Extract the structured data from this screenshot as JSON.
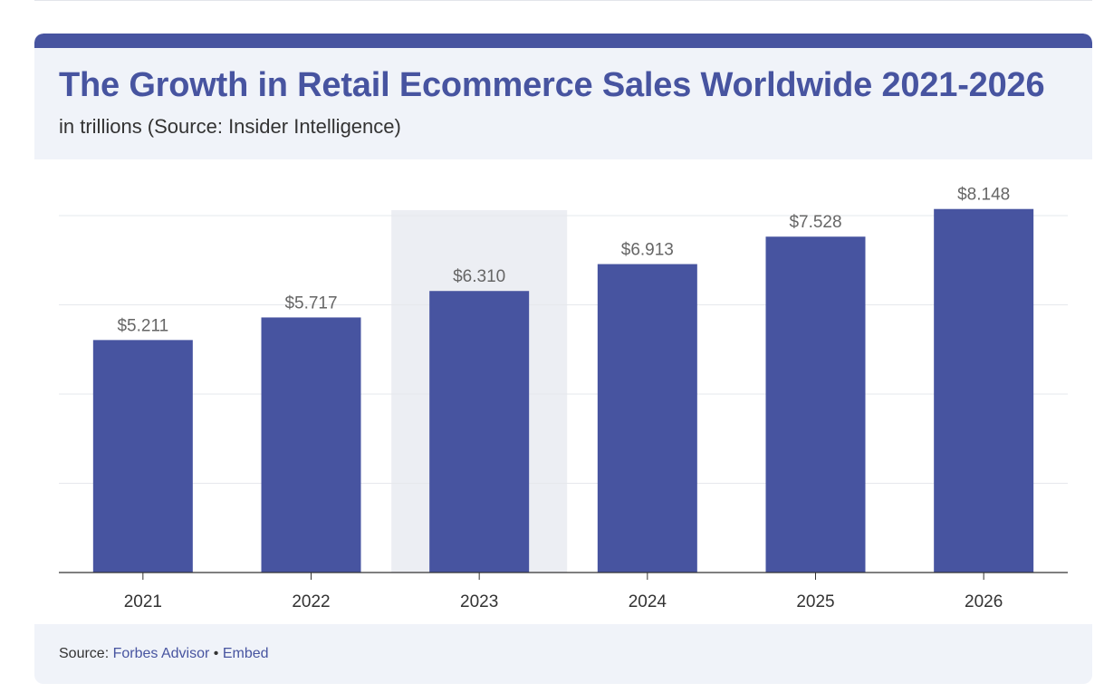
{
  "header": {
    "title": "The Growth in Retail Ecommerce Sales Worldwide 2021-2026",
    "subtitle": "in trillions (Source: Insider Intelligence)"
  },
  "footer": {
    "source_prefix": "Source:",
    "source_name": "Forbes Advisor",
    "separator": "•",
    "embed_label": "Embed"
  },
  "colors": {
    "accent": "#4754a0",
    "bar": "#4754a0",
    "highlight_band": "#eceef3",
    "gridline": "#e6e8ec",
    "axis": "#333333",
    "label": "#666666"
  },
  "chart_data": {
    "type": "bar",
    "title": "The Growth in Retail Ecommerce Sales Worldwide 2021-2026",
    "subtitle": "in trillions (Source: Insider Intelligence)",
    "xlabel": "",
    "ylabel": "",
    "categories": [
      "2021",
      "2022",
      "2023",
      "2024",
      "2025",
      "2026"
    ],
    "values": [
      5.211,
      5.717,
      6.31,
      6.913,
      7.528,
      8.148
    ],
    "value_labels": [
      "$5.211",
      "$5.717",
      "$6.310",
      "$6.913",
      "$7.528",
      "$8.148"
    ],
    "ylim": [
      0,
      8
    ],
    "grid_values": [
      2,
      4,
      6,
      8
    ],
    "grid": true,
    "legend": "none",
    "highlighted_category": "2023"
  }
}
